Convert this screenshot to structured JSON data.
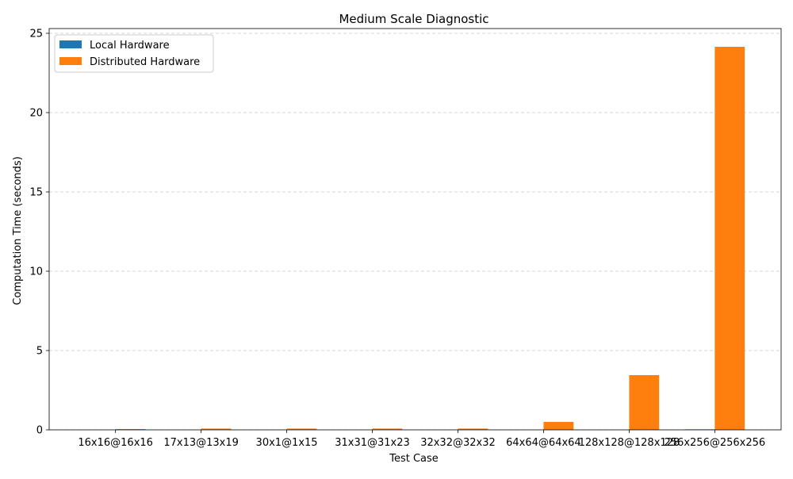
{
  "chart_data": {
    "type": "bar",
    "title": "Medium Scale Diagnostic",
    "xlabel": "Test Case",
    "ylabel": "Computation Time (seconds)",
    "categories": [
      "16x16@16x16",
      "17x13@13x19",
      "30x1@1x15",
      "31x31@31x23",
      "32x32@32x32",
      "64x64@64x64",
      "128x128@128x128",
      "256x256@256x256"
    ],
    "series": [
      {
        "name": "Local Hardware",
        "color": "#1f77b4",
        "values": [
          0.0,
          0.0,
          0.0,
          0.0,
          0.0,
          0.0,
          0.0,
          0.03
        ]
      },
      {
        "name": "Distributed Hardware",
        "color": "#ff7f0e",
        "values": [
          0.05,
          0.08,
          0.08,
          0.08,
          0.08,
          0.5,
          3.45,
          24.15
        ]
      }
    ],
    "ylim": [
      0,
      25.3
    ],
    "yticks": [
      0,
      5,
      10,
      15,
      20,
      25
    ],
    "grid": "y-only, dashed",
    "legend_position": "top-left"
  }
}
